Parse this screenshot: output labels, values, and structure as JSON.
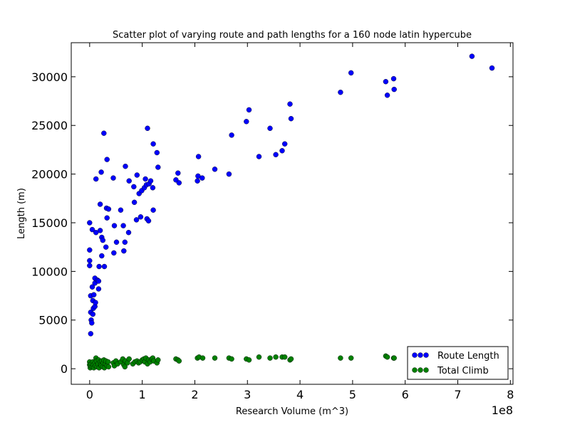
{
  "chart_data": {
    "type": "scatter",
    "title": "Scatter plot of varying route and path lengths for a 160 node latin hypercube",
    "xlabel": "Research Volume (m^3)",
    "ylabel": "Length (m)",
    "x_multiplier": "1e8",
    "xlim": [
      -0.35,
      8.05
    ],
    "ylim": [
      -1600,
      33500
    ],
    "x_ticks": [
      0,
      1,
      2,
      3,
      4,
      5,
      6,
      7,
      8
    ],
    "x_tick_labels": [
      "0",
      "1",
      "2",
      "3",
      "4",
      "5",
      "6",
      "7",
      "8"
    ],
    "y_ticks": [
      0,
      5000,
      10000,
      15000,
      20000,
      25000,
      30000
    ],
    "y_tick_labels": [
      "0",
      "5000",
      "10000",
      "15000",
      "20000",
      "25000",
      "30000"
    ],
    "grid": false,
    "legend_position": "bottom-right",
    "series": [
      {
        "name": "Route Length",
        "color": "#0000ff",
        "points": [
          [
            0.0,
            15000
          ],
          [
            0.0,
            12200
          ],
          [
            0.0,
            11100
          ],
          [
            0.0,
            10600
          ],
          [
            0.02,
            7500
          ],
          [
            0.02,
            5800
          ],
          [
            0.03,
            5000
          ],
          [
            0.04,
            4700
          ],
          [
            0.02,
            3600
          ],
          [
            0.05,
            8400
          ],
          [
            0.05,
            14300
          ],
          [
            0.06,
            7000
          ],
          [
            0.06,
            5600
          ],
          [
            0.07,
            6200
          ],
          [
            0.08,
            7600
          ],
          [
            0.1,
            9300
          ],
          [
            0.1,
            8800
          ],
          [
            0.1,
            6400
          ],
          [
            0.11,
            6800
          ],
          [
            0.12,
            14000
          ],
          [
            0.12,
            19500
          ],
          [
            0.15,
            9100
          ],
          [
            0.17,
            9000
          ],
          [
            0.17,
            8200
          ],
          [
            0.18,
            10500
          ],
          [
            0.2,
            16900
          ],
          [
            0.2,
            14200
          ],
          [
            0.22,
            20200
          ],
          [
            0.23,
            13500
          ],
          [
            0.23,
            11600
          ],
          [
            0.25,
            13200
          ],
          [
            0.27,
            24200
          ],
          [
            0.28,
            10500
          ],
          [
            0.31,
            12500
          ],
          [
            0.32,
            16500
          ],
          [
            0.33,
            15500
          ],
          [
            0.33,
            21500
          ],
          [
            0.36,
            16400
          ],
          [
            0.45,
            19600
          ],
          [
            0.46,
            11900
          ],
          [
            0.47,
            14700
          ],
          [
            0.51,
            13000
          ],
          [
            0.59,
            16300
          ],
          [
            0.64,
            14700
          ],
          [
            0.65,
            12100
          ],
          [
            0.67,
            13000
          ],
          [
            0.68,
            20800
          ],
          [
            0.74,
            14000
          ],
          [
            0.75,
            19300
          ],
          [
            0.84,
            18700
          ],
          [
            0.85,
            17100
          ],
          [
            0.89,
            15300
          ],
          [
            0.9,
            19900
          ],
          [
            0.94,
            18000
          ],
          [
            0.97,
            15600
          ],
          [
            0.99,
            18300
          ],
          [
            1.04,
            18600
          ],
          [
            1.06,
            19500
          ],
          [
            1.08,
            18900
          ],
          [
            1.09,
            15400
          ],
          [
            1.1,
            24700
          ],
          [
            1.12,
            15200
          ],
          [
            1.13,
            19000
          ],
          [
            1.16,
            19300
          ],
          [
            1.2,
            18600
          ],
          [
            1.21,
            16300
          ],
          [
            1.21,
            23100
          ],
          [
            1.28,
            22200
          ],
          [
            1.3,
            20700
          ],
          [
            1.64,
            19400
          ],
          [
            1.68,
            20100
          ],
          [
            1.7,
            19100
          ],
          [
            2.05,
            19300
          ],
          [
            2.06,
            19800
          ],
          [
            2.07,
            21800
          ],
          [
            2.14,
            19600
          ],
          [
            2.38,
            20500
          ],
          [
            2.65,
            20000
          ],
          [
            2.7,
            24000
          ],
          [
            2.98,
            25400
          ],
          [
            3.03,
            26600
          ],
          [
            3.22,
            21800
          ],
          [
            3.43,
            24700
          ],
          [
            3.54,
            22000
          ],
          [
            3.66,
            22400
          ],
          [
            3.71,
            23100
          ],
          [
            3.81,
            27200
          ],
          [
            3.83,
            25700
          ],
          [
            4.77,
            28400
          ],
          [
            4.97,
            30400
          ],
          [
            5.63,
            29500
          ],
          [
            5.66,
            28100
          ],
          [
            5.78,
            29800
          ],
          [
            5.79,
            28700
          ],
          [
            7.27,
            32100
          ],
          [
            7.65,
            30900
          ]
        ]
      },
      {
        "name": "Total Climb",
        "color": "#008000",
        "points": [
          [
            0.0,
            700
          ],
          [
            0.0,
            400
          ],
          [
            0.01,
            100
          ],
          [
            0.02,
            300
          ],
          [
            0.03,
            500
          ],
          [
            0.05,
            200
          ],
          [
            0.06,
            700
          ],
          [
            0.07,
            400
          ],
          [
            0.08,
            100
          ],
          [
            0.1,
            600
          ],
          [
            0.11,
            300
          ],
          [
            0.12,
            1100
          ],
          [
            0.13,
            800
          ],
          [
            0.14,
            200
          ],
          [
            0.16,
            500
          ],
          [
            0.17,
            900
          ],
          [
            0.18,
            100
          ],
          [
            0.2,
            700
          ],
          [
            0.21,
            400
          ],
          [
            0.22,
            300
          ],
          [
            0.23,
            800
          ],
          [
            0.25,
            200
          ],
          [
            0.26,
            600
          ],
          [
            0.27,
            900
          ],
          [
            0.28,
            100
          ],
          [
            0.3,
            500
          ],
          [
            0.31,
            800
          ],
          [
            0.33,
            300
          ],
          [
            0.35,
            700
          ],
          [
            0.36,
            200
          ],
          [
            0.45,
            600
          ],
          [
            0.47,
            300
          ],
          [
            0.5,
            800
          ],
          [
            0.53,
            500
          ],
          [
            0.59,
            700
          ],
          [
            0.63,
            1000
          ],
          [
            0.65,
            400
          ],
          [
            0.67,
            200
          ],
          [
            0.68,
            800
          ],
          [
            0.72,
            600
          ],
          [
            0.75,
            1000
          ],
          [
            0.82,
            500
          ],
          [
            0.86,
            700
          ],
          [
            0.9,
            800
          ],
          [
            0.93,
            600
          ],
          [
            0.96,
            700
          ],
          [
            1.0,
            900
          ],
          [
            1.03,
            1000
          ],
          [
            1.05,
            700
          ],
          [
            1.07,
            1100
          ],
          [
            1.1,
            500
          ],
          [
            1.12,
            900
          ],
          [
            1.15,
            700
          ],
          [
            1.18,
            1000
          ],
          [
            1.2,
            1100
          ],
          [
            1.22,
            800
          ],
          [
            1.28,
            600
          ],
          [
            1.3,
            900
          ],
          [
            1.64,
            1000
          ],
          [
            1.68,
            900
          ],
          [
            1.7,
            800
          ],
          [
            2.05,
            1100
          ],
          [
            2.08,
            1200
          ],
          [
            2.15,
            1100
          ],
          [
            2.38,
            1100
          ],
          [
            2.65,
            1100
          ],
          [
            2.7,
            1000
          ],
          [
            2.98,
            1000
          ],
          [
            3.03,
            900
          ],
          [
            3.22,
            1200
          ],
          [
            3.43,
            1100
          ],
          [
            3.54,
            1200
          ],
          [
            3.66,
            1200
          ],
          [
            3.71,
            1200
          ],
          [
            3.81,
            900
          ],
          [
            3.83,
            1000
          ],
          [
            4.77,
            1100
          ],
          [
            4.97,
            1100
          ],
          [
            5.63,
            1300
          ],
          [
            5.66,
            1200
          ],
          [
            5.78,
            1100
          ],
          [
            5.79,
            1100
          ]
        ]
      }
    ]
  }
}
